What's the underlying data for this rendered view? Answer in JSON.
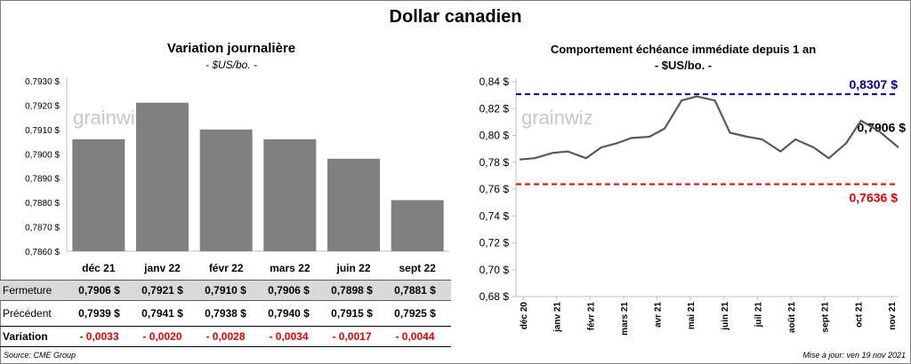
{
  "title": "Dollar canadien",
  "left_panel": {
    "title": "Variation  journalière",
    "subtitle": "- $US/bo. -"
  },
  "right_panel": {
    "title": "Comportement échéance immédiate depuis 1 an",
    "subtitle": "- $US/bo. -"
  },
  "watermark": "grainwiz",
  "table": {
    "rows": [
      {
        "label": "Fermeture",
        "values": [
          "0,7906  $",
          "0,7921  $",
          "0,7910  $",
          "0,7906  $",
          "0,7898  $",
          "0,7881  $"
        ]
      },
      {
        "label": "Précédent",
        "values": [
          "0,7939  $",
          "0,7941  $",
          "0,7938  $",
          "0,7940  $",
          "0,7915  $",
          "0,7925  $"
        ]
      },
      {
        "label": "Variation",
        "values": [
          "- 0,0033",
          "- 0,0020",
          "- 0,0028",
          "- 0,0034",
          "- 0,0017",
          "- 0,0044"
        ]
      }
    ]
  },
  "footer": {
    "source": "Source: CME Group",
    "updated": "Mise à jour: ven 19 nov 2021"
  },
  "colors": {
    "bar": "#808080",
    "line": "#595959",
    "high": "#000099",
    "low": "#e00000",
    "current": "#000000",
    "table_header_bg": "#d9d9d9"
  },
  "chart_data": [
    {
      "type": "bar",
      "title": "Variation  journalière",
      "subtitle": "- $US/bo. -",
      "categories": [
        "déc 21",
        "janv 22",
        "févr 22",
        "mars 22",
        "juin 22",
        "sept 22"
      ],
      "values": [
        0.7906,
        0.7921,
        0.791,
        0.7906,
        0.7898,
        0.7881
      ],
      "ylim": [
        0.786,
        0.793
      ],
      "yticks": [
        "0,7930 $",
        "0,7920 $",
        "0,7910 $",
        "0,7900 $",
        "0,7890 $",
        "0,7880 $",
        "0,7870 $",
        "0,7860 $"
      ],
      "grid": false
    },
    {
      "type": "line",
      "title": "Comportement échéance immédiate depuis 1 an",
      "subtitle": "- $US/bo. -",
      "x": [
        "2020-12-01",
        "2020-12-15",
        "2021-01-01",
        "2021-01-15",
        "2021-02-01",
        "2021-02-15",
        "2021-03-01",
        "2021-03-15",
        "2021-04-01",
        "2021-04-15",
        "2021-05-01",
        "2021-05-15",
        "2021-06-01",
        "2021-06-15",
        "2021-07-01",
        "2021-07-15",
        "2021-08-01",
        "2021-08-15",
        "2021-09-01",
        "2021-09-15",
        "2021-10-01",
        "2021-10-15",
        "2021-11-01",
        "2021-11-19"
      ],
      "y": [
        0.782,
        0.783,
        0.787,
        0.788,
        0.783,
        0.791,
        0.794,
        0.798,
        0.799,
        0.805,
        0.826,
        0.829,
        0.826,
        0.802,
        0.799,
        0.797,
        0.788,
        0.797,
        0.791,
        0.783,
        0.794,
        0.811,
        0.803,
        0.791
      ],
      "xticks": [
        "déc 20",
        "janv 21",
        "févr 21",
        "mars 21",
        "avr 21",
        "mai 21",
        "juin 21",
        "juil 21",
        "août 21",
        "sept 21",
        "oct 21",
        "nov 21"
      ],
      "yticks": [
        "0,84 $",
        "0,82 $",
        "0,80 $",
        "0,78 $",
        "0,76 $",
        "0,74 $",
        "0,72 $",
        "0,70 $",
        "0,68 $"
      ],
      "ylim": [
        0.68,
        0.84
      ],
      "high": {
        "value": 0.8307,
        "label": "0,8307 $"
      },
      "low": {
        "value": 0.7636,
        "label": "0,7636 $"
      },
      "last": {
        "value": 0.7906,
        "label": "0,7906 $"
      },
      "grid": false
    }
  ]
}
